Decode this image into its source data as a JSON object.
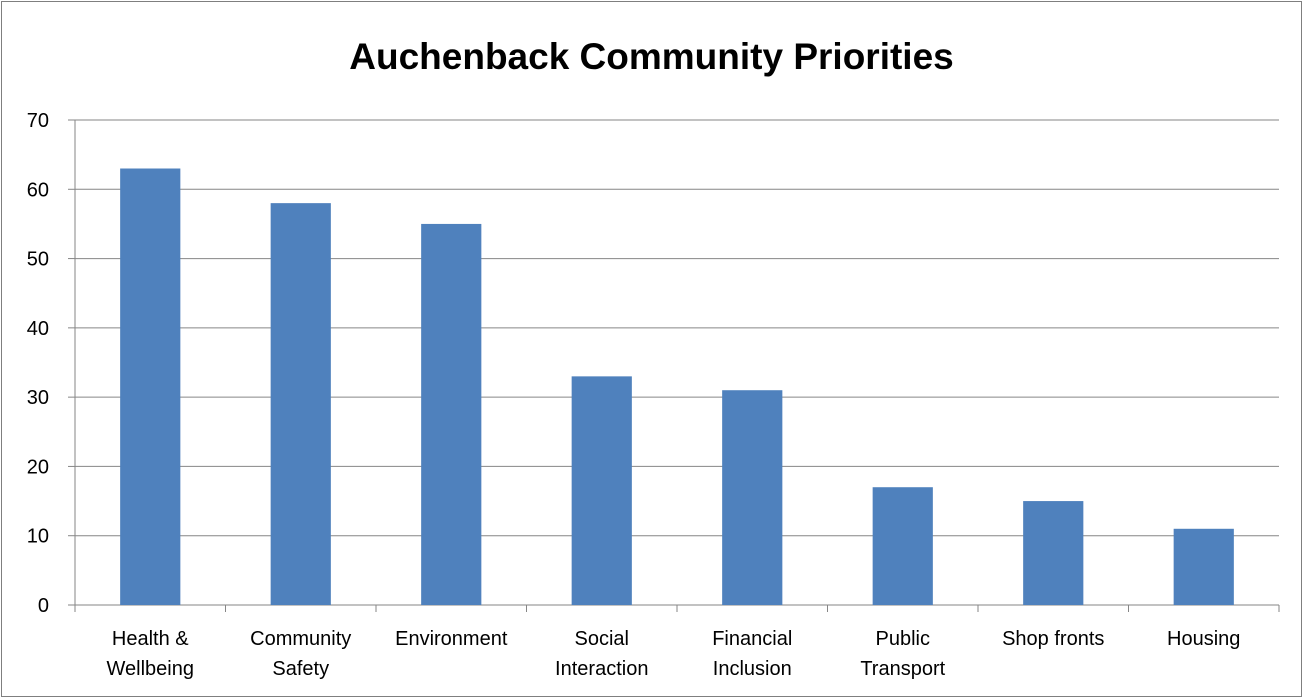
{
  "chart_data": {
    "type": "bar",
    "title": "Auchenback Community Priorities",
    "categories": [
      [
        "Health &",
        "Wellbeing"
      ],
      [
        "Community",
        "Safety"
      ],
      [
        "Environment"
      ],
      [
        "Social",
        "Interaction"
      ],
      [
        "Financial",
        "Inclusion"
      ],
      [
        "Public",
        "Transport"
      ],
      [
        "Shop fronts"
      ],
      [
        "Housing"
      ]
    ],
    "values": [
      63,
      58,
      55,
      33,
      31,
      17,
      15,
      11
    ],
    "ylim": [
      0,
      70
    ],
    "yticks": [
      0,
      10,
      20,
      30,
      40,
      50,
      60,
      70
    ],
    "grid": true,
    "legend": "none",
    "colors": {
      "bar": "#4f81bd",
      "grid": "#868686",
      "axis": "#868686"
    }
  }
}
